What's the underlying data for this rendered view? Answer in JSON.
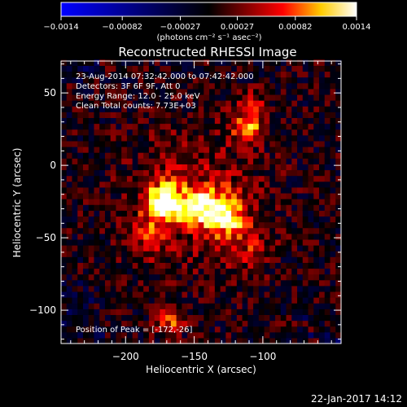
{
  "chart_data": {
    "type": "heatmap",
    "title": "Reconstructed RHESSI Image",
    "xlabel": "Heliocentric X (arcsec)",
    "ylabel": "Heliocentric Y (arcsec)",
    "xlim": [
      -247,
      -43
    ],
    "ylim": [
      -123,
      72
    ],
    "x_ticks": [
      -200,
      -150,
      -100
    ],
    "y_ticks": [
      50,
      0,
      -50,
      -100
    ],
    "colorbar": {
      "tick_values": [
        -0.0014,
        -0.00082,
        -0.00027,
        0.00027,
        0.00082,
        0.0014
      ],
      "tick_labels": [
        "-0.0014",
        "-0.00082",
        "-0.00027",
        "0.00027",
        "0.00082",
        "0.0014"
      ],
      "unit_label": "(photons cm⁻² s⁻¹ asec⁻²)",
      "range": [
        -0.0014,
        0.0014
      ]
    },
    "annotations": [
      "23-Aug-2014 07:32:42.000 to 07:42:42.000",
      "Detectors: 3F 6F 9F, Att 0",
      "Energy Range: 12.0 - 25.0 keV",
      "Clean    Total counts: 7.73E+03"
    ],
    "peak_label": "Position of Peak = [-172,-26]",
    "peak": [
      -172,
      -26
    ],
    "sources": [
      {
        "x": -172,
        "y": -26,
        "sigma": 9,
        "amplitude": 0.0014
      },
      {
        "x": -128,
        "y": -33,
        "sigma": 10,
        "amplitude": 0.00112
      },
      {
        "x": -148,
        "y": -28,
        "sigma": 8,
        "amplitude": 0.00095
      },
      {
        "x": -112,
        "y": 27,
        "sigma": 8,
        "amplitude": 0.0009
      },
      {
        "x": -108,
        "y": 45,
        "sigma": 6,
        "amplitude": 0.0006
      },
      {
        "x": -168,
        "y": -105,
        "sigma": 7,
        "amplitude": 0.00085
      },
      {
        "x": -185,
        "y": -50,
        "sigma": 11,
        "amplitude": 0.0004
      },
      {
        "x": -110,
        "y": -55,
        "sigma": 12,
        "amplitude": 0.0004
      }
    ],
    "colormap": [
      "#0000ff",
      "#000000",
      "#ff0000",
      "#ffff00",
      "#ffffff"
    ]
  },
  "footer": {
    "date": "22-Jan-2017 14:12"
  }
}
